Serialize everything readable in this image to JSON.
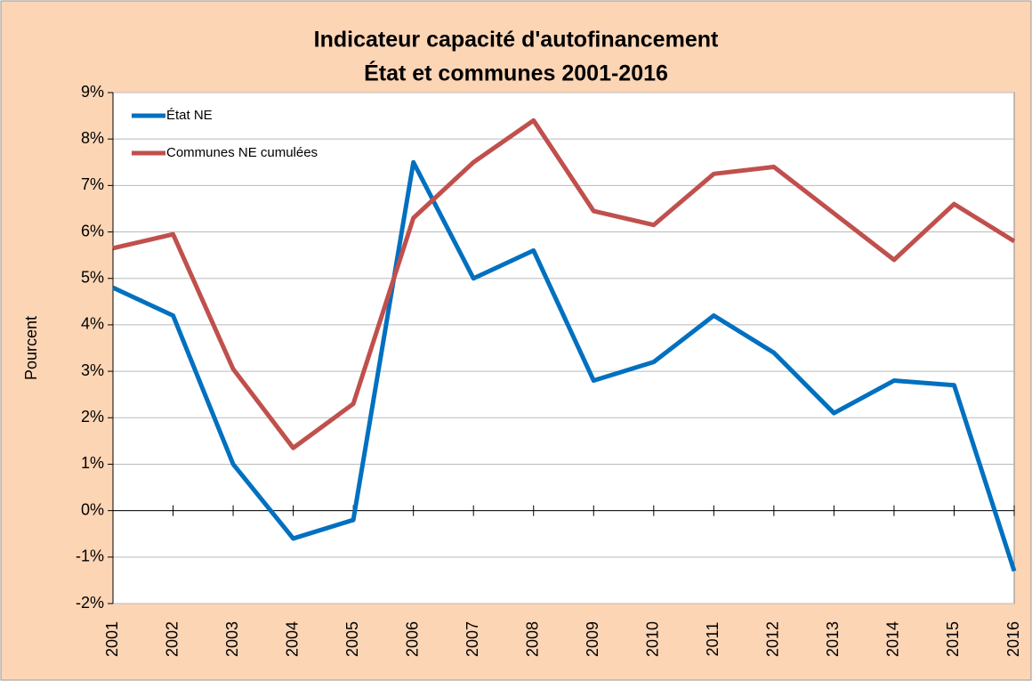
{
  "chart_data": {
    "type": "line",
    "title": "Indicateur capacité d'autofinancement",
    "subtitle": "État et communes 2001-2016",
    "ylabel": "Pourcent",
    "categories": [
      "2001",
      "2002",
      "2003",
      "2004",
      "2005",
      "2006",
      "2007",
      "2008",
      "2009",
      "2010",
      "2011",
      "2012",
      "2013",
      "2014",
      "2015",
      "2016"
    ],
    "series": [
      {
        "name": "État NE",
        "color": "#0070c0",
        "values": [
          4.8,
          4.2,
          1.0,
          -0.6,
          -0.2,
          7.5,
          5.0,
          5.6,
          2.8,
          3.2,
          4.2,
          3.4,
          2.1,
          2.8,
          2.7,
          -1.3
        ]
      },
      {
        "name": "Communes NE cumulées",
        "color": "#c0504d",
        "values": [
          5.65,
          5.95,
          3.05,
          1.35,
          2.3,
          6.3,
          7.5,
          8.4,
          6.45,
          6.15,
          7.25,
          7.4,
          6.4,
          5.4,
          6.6,
          5.8
        ]
      }
    ],
    "ylim": [
      -2,
      9
    ],
    "yticks": [
      {
        "value": -2,
        "label": "-2%"
      },
      {
        "value": -1,
        "label": "-1%"
      },
      {
        "value": 0,
        "label": "0%"
      },
      {
        "value": 1,
        "label": "1%"
      },
      {
        "value": 2,
        "label": "2%"
      },
      {
        "value": 3,
        "label": "3%"
      },
      {
        "value": 4,
        "label": "4%"
      },
      {
        "value": 5,
        "label": "5%"
      },
      {
        "value": 6,
        "label": "6%"
      },
      {
        "value": 7,
        "label": "7%"
      },
      {
        "value": 8,
        "label": "8%"
      },
      {
        "value": 9,
        "label": "9%"
      }
    ],
    "grid": true,
    "legend": "upper left"
  }
}
